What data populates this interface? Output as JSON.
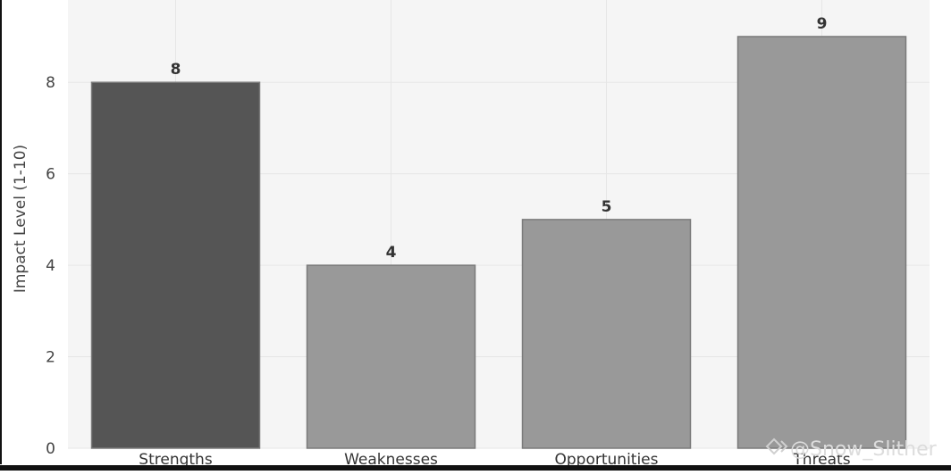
{
  "chart_data": {
    "type": "bar",
    "categories": [
      "Strengths",
      "Weaknesses",
      "Opportunities",
      "Threats"
    ],
    "values": [
      8,
      4,
      5,
      9
    ],
    "value_labels": [
      "8",
      "4",
      "5",
      "9"
    ],
    "ylabel": "Impact Level (1-10)",
    "ylim": [
      0,
      9.8
    ],
    "yticks": [
      0,
      2,
      4,
      6,
      8
    ],
    "grid": true,
    "legend": "none",
    "colors": {
      "bars": [
        "#555555",
        "#999999",
        "#999999",
        "#999999"
      ],
      "bar_edge": "#7a7a7a",
      "plot_background": "#f5f5f5",
      "grid": "#e6e6e6"
    }
  },
  "watermark": {
    "text": "@Snow_Slither",
    "icon": "diamond-logo-icon"
  }
}
